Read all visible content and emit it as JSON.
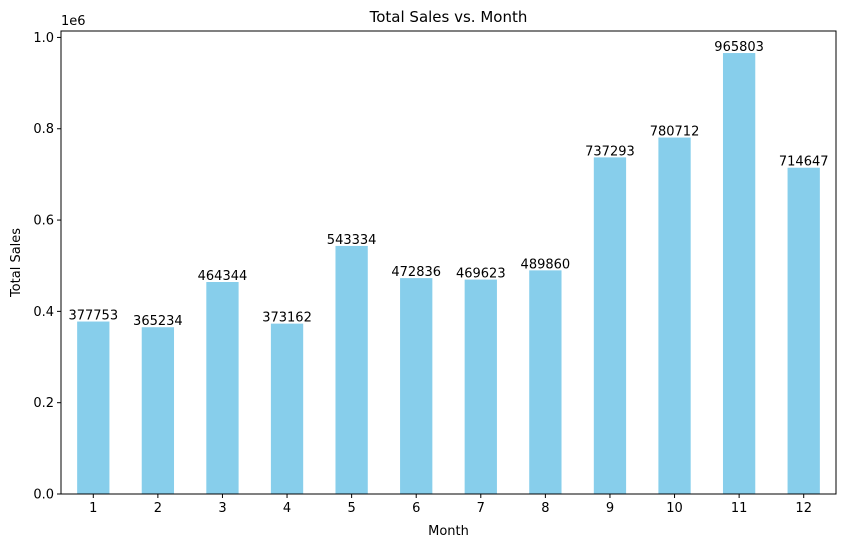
{
  "chart_data": {
    "type": "bar",
    "title": "Total Sales vs. Month",
    "xlabel": "Month",
    "ylabel": "Total Sales",
    "y_scale_label": "1e6",
    "categories": [
      "1",
      "2",
      "3",
      "4",
      "5",
      "6",
      "7",
      "8",
      "9",
      "10",
      "11",
      "12"
    ],
    "values": [
      377753,
      365234,
      464344,
      373162,
      543334,
      472836,
      469623,
      489860,
      737293,
      780712,
      965803,
      714647
    ],
    "data_labels": [
      "377753",
      "365234",
      "464344",
      "373162",
      "543334",
      "472836",
      "469623",
      "489860",
      "737293",
      "780712",
      "965803",
      "714647"
    ],
    "ylim": [
      0,
      1014093
    ],
    "yticks": [
      0,
      200000,
      400000,
      600000,
      800000,
      1000000
    ],
    "ytick_labels": [
      "0.0",
      "0.2",
      "0.4",
      "0.6",
      "0.8",
      "1.0"
    ],
    "grid": false,
    "bar_color": "#87CEEB"
  }
}
